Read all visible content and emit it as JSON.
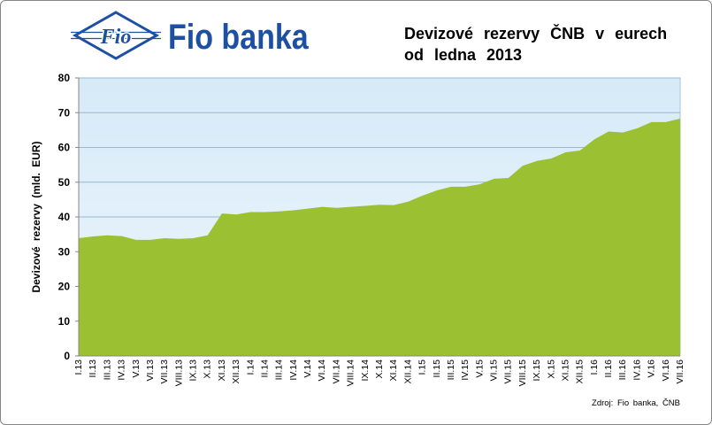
{
  "brand": {
    "logo_text": "Fio",
    "name": "Fio banka"
  },
  "colors": {
    "brand_blue": "#1d50a2",
    "area_fill": "#9bc132",
    "plot_background_top": "#d6eaf8",
    "plot_background_bottom": "#eef6fc",
    "gridline": "#98b8d6",
    "axis": "#868686"
  },
  "chart_data": {
    "type": "area",
    "title": [
      "Devizové rezervy ČNB v eurech",
      "od ledna 2013"
    ],
    "ylabel": "Devizové rezervy (mld. EUR)",
    "source": "Zdroj: Fio banka, ČNB",
    "categories": [
      "I.13",
      "II.13",
      "III.13",
      "IV.13",
      "V.13",
      "VI.13",
      "VII.13",
      "VIII.13",
      "IX.13",
      "X.13",
      "XI.13",
      "XII.13",
      "I.14",
      "II.14",
      "III.14",
      "IV.14",
      "V.14",
      "VI.14",
      "VII.14",
      "VIII.14",
      "IX.14",
      "X.14",
      "XI.14",
      "XII.14",
      "I.15",
      "II.15",
      "III.15",
      "IV.15",
      "V.15",
      "VI.15",
      "VII.15",
      "VIII.15",
      "IX.15",
      "X.15",
      "XI.15",
      "XII.15",
      "I.16",
      "II.16",
      "III.16",
      "IV.16",
      "V.16",
      "VI.16",
      "VII.16"
    ],
    "values": [
      33.9,
      34.4,
      34.7,
      34.5,
      33.4,
      33.4,
      33.9,
      33.7,
      33.9,
      34.7,
      41.0,
      40.7,
      41.4,
      41.4,
      41.6,
      41.9,
      42.4,
      42.9,
      42.6,
      42.9,
      43.2,
      43.5,
      43.4,
      44.4,
      46.1,
      47.6,
      48.7,
      48.7,
      49.4,
      51.0,
      51.2,
      54.7,
      56.1,
      56.8,
      58.6,
      59.1,
      62.3,
      64.6,
      64.3,
      65.5,
      67.3,
      67.3,
      68.3
    ],
    "ylim": [
      0,
      80
    ],
    "yticks": [
      0,
      10,
      20,
      30,
      40,
      50,
      60,
      70,
      80
    ],
    "grid": true
  }
}
